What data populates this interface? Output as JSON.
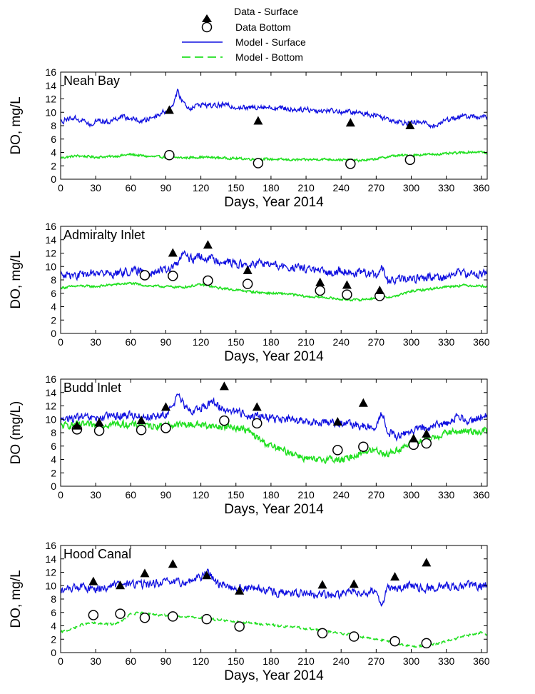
{
  "legend": {
    "data_surface": "Data - Surface",
    "data_bottom": "Data Bottom",
    "model_surface": "Model - Surface",
    "model_bottom": "Model - Bottom"
  },
  "colors": {
    "model_surface": "#1010e0",
    "model_bottom": "#22e022",
    "markers": "#000000"
  },
  "chart_data": [
    {
      "type": "line",
      "title": "Neah Bay",
      "xlabel": "Days, Year 2014",
      "ylabel": "DO, mg/L",
      "xlim": [
        0,
        365
      ],
      "ylim": [
        0,
        16
      ],
      "x_ticks": [
        "0",
        "30",
        "60",
        "90",
        "120",
        "150",
        "180",
        "210",
        "240",
        "270",
        "300",
        "330",
        "360"
      ],
      "y_ticks": [
        "0",
        "2",
        "4",
        "6",
        "8",
        "10",
        "12",
        "14",
        "16"
      ],
      "model_surface": {
        "name": "Model - Surface",
        "x": [
          0,
          10,
          20,
          28,
          30,
          40,
          50,
          60,
          70,
          80,
          85,
          90,
          95,
          100,
          105,
          110,
          120,
          130,
          140,
          150,
          160,
          170,
          180,
          190,
          200,
          210,
          220,
          230,
          240,
          250,
          260,
          270,
          280,
          290,
          300,
          310,
          320,
          330,
          340,
          350,
          360,
          365
        ],
        "y": [
          8.6,
          9.2,
          8.7,
          7.8,
          8.9,
          8.5,
          9.3,
          9.1,
          8.6,
          9.4,
          9.8,
          10.2,
          10.8,
          13.0,
          11.5,
          10.6,
          11.2,
          11.0,
          11.1,
          10.8,
          10.6,
          10.9,
          10.7,
          10.6,
          10.4,
          10.5,
          10.2,
          10.3,
          10.1,
          10.0,
          9.8,
          9.6,
          9.0,
          8.6,
          8.4,
          8.5,
          7.9,
          8.9,
          9.3,
          9.4,
          9.3,
          9.2
        ]
      },
      "model_bottom": {
        "name": "Model - Bottom",
        "x": [
          0,
          15,
          30,
          45,
          60,
          75,
          90,
          105,
          120,
          135,
          150,
          165,
          180,
          195,
          210,
          225,
          240,
          255,
          265,
          275,
          285,
          300,
          315,
          330,
          345,
          360,
          365
        ],
        "y": [
          3.2,
          3.5,
          3.3,
          3.4,
          3.7,
          3.4,
          3.3,
          3.2,
          3.3,
          3.2,
          3.1,
          3.0,
          3.0,
          2.9,
          2.9,
          3.0,
          2.9,
          2.8,
          2.9,
          3.2,
          3.5,
          3.6,
          3.7,
          3.8,
          4.0,
          4.1,
          3.8
        ]
      },
      "data_surface": {
        "name": "Data - Surface",
        "x": [
          93,
          169,
          248,
          299
        ],
        "y": [
          10.3,
          8.7,
          8.4,
          8.0
        ]
      },
      "data_bottom": {
        "name": "Data Bottom",
        "x": [
          93,
          169,
          248,
          299
        ],
        "y": [
          3.6,
          2.4,
          2.3,
          2.9
        ]
      }
    },
    {
      "type": "line",
      "title": "Admiralty Inlet",
      "xlabel": "Days, Year 2014",
      "ylabel": "DO, mg/L",
      "xlim": [
        0,
        365
      ],
      "ylim": [
        0,
        16
      ],
      "x_ticks": [
        "0",
        "30",
        "60",
        "90",
        "120",
        "150",
        "180",
        "210",
        "240",
        "270",
        "300",
        "330",
        "360"
      ],
      "y_ticks": [
        "0",
        "2",
        "4",
        "6",
        "8",
        "10",
        "12",
        "14",
        "16"
      ],
      "model_surface": {
        "name": "Model - Surface",
        "x": [
          0,
          15,
          30,
          45,
          60,
          75,
          90,
          100,
          105,
          110,
          120,
          130,
          140,
          150,
          160,
          170,
          180,
          190,
          200,
          210,
          220,
          230,
          240,
          250,
          260,
          270,
          275,
          280,
          290,
          300,
          310,
          320,
          330,
          340,
          350,
          360,
          365
        ],
        "y": [
          8.8,
          8.6,
          9.1,
          8.9,
          9.3,
          9.2,
          9.4,
          10.3,
          12.2,
          11.0,
          11.5,
          11.1,
          10.8,
          10.4,
          10.1,
          10.5,
          10.3,
          9.9,
          9.8,
          9.7,
          9.3,
          9.0,
          9.6,
          8.9,
          9.1,
          8.6,
          9.8,
          7.8,
          8.0,
          8.2,
          8.3,
          8.5,
          8.4,
          9.2,
          8.8,
          8.9,
          9.2
        ]
      },
      "model_bottom": {
        "name": "Model - Bottom",
        "x": [
          0,
          15,
          30,
          45,
          60,
          75,
          90,
          105,
          120,
          135,
          150,
          165,
          180,
          195,
          210,
          225,
          240,
          255,
          270,
          285,
          300,
          315,
          330,
          345,
          360,
          365
        ],
        "y": [
          6.8,
          7.1,
          7.0,
          7.3,
          7.5,
          7.1,
          7.0,
          6.9,
          7.3,
          6.8,
          6.5,
          6.2,
          6.0,
          5.9,
          5.5,
          5.4,
          5.1,
          5.0,
          5.3,
          5.5,
          6.3,
          6.6,
          7.0,
          7.2,
          7.1,
          7.0
        ]
      },
      "data_surface": {
        "name": "Data - Surface",
        "x": [
          96,
          126,
          160,
          222,
          245,
          273
        ],
        "y": [
          12.0,
          13.2,
          9.4,
          7.6,
          7.2,
          6.4
        ]
      },
      "data_bottom": {
        "name": "Data Bottom",
        "x": [
          72,
          96,
          126,
          160,
          222,
          245,
          273
        ],
        "y": [
          8.7,
          8.6,
          7.9,
          7.4,
          6.4,
          5.8,
          5.6
        ]
      }
    },
    {
      "type": "line",
      "title": "Budd Inlet",
      "xlabel": "Days, Year 2014",
      "ylabel": "DO (mg/L)",
      "xlim": [
        0,
        365
      ],
      "ylim": [
        0,
        16
      ],
      "x_ticks": [
        "0",
        "30",
        "60",
        "90",
        "120",
        "150",
        "180",
        "210",
        "240",
        "270",
        "300",
        "330",
        "360"
      ],
      "y_ticks": [
        "0",
        "2",
        "4",
        "6",
        "8",
        "10",
        "12",
        "14",
        "16"
      ],
      "model_surface": {
        "name": "Model - Surface",
        "x": [
          0,
          15,
          30,
          45,
          60,
          75,
          90,
          100,
          110,
          120,
          130,
          140,
          150,
          160,
          170,
          180,
          190,
          200,
          210,
          220,
          230,
          240,
          250,
          260,
          270,
          275,
          280,
          290,
          300,
          310,
          320,
          330,
          340,
          350,
          360,
          365
        ],
        "y": [
          9.8,
          10.3,
          10.1,
          10.5,
          10.6,
          10.4,
          10.5,
          13.5,
          11.0,
          11.8,
          12.5,
          11.5,
          11.2,
          10.6,
          10.5,
          10.2,
          10.0,
          9.8,
          9.6,
          9.5,
          9.7,
          9.3,
          9.2,
          9.0,
          8.4,
          11.2,
          8.0,
          7.4,
          8.3,
          8.6,
          9.0,
          9.4,
          10.5,
          9.8,
          10.3,
          10.8
        ]
      },
      "model_bottom": {
        "name": "Model - Bottom",
        "x": [
          0,
          15,
          30,
          45,
          60,
          75,
          90,
          105,
          120,
          135,
          150,
          160,
          170,
          180,
          190,
          200,
          210,
          220,
          230,
          240,
          250,
          260,
          270,
          280,
          290,
          300,
          315,
          330,
          345,
          360,
          365
        ],
        "y": [
          9.0,
          9.2,
          9.1,
          9.3,
          9.2,
          9.0,
          9.1,
          9.2,
          9.2,
          8.9,
          8.8,
          8.3,
          7.0,
          6.0,
          5.3,
          4.9,
          4.1,
          3.8,
          4.2,
          3.8,
          4.5,
          5.2,
          5.4,
          4.8,
          5.6,
          6.3,
          7.0,
          8.0,
          8.2,
          8.2,
          8.3
        ]
      },
      "data_surface": {
        "name": "Data - Surface",
        "x": [
          14,
          33,
          69,
          90,
          140,
          168,
          237,
          259,
          302,
          313
        ],
        "y": [
          9.0,
          9.5,
          9.8,
          11.8,
          14.9,
          11.8,
          9.6,
          12.4,
          7.1,
          7.8
        ]
      },
      "data_bottom": {
        "name": "Data Bottom",
        "x": [
          14,
          33,
          69,
          90,
          140,
          168,
          237,
          259,
          302,
          313
        ],
        "y": [
          8.5,
          8.3,
          8.4,
          8.7,
          9.8,
          9.4,
          5.4,
          5.9,
          6.2,
          6.4
        ]
      }
    },
    {
      "type": "line",
      "title": "Hood Canal",
      "xlabel": "Days, Year 2014",
      "ylabel": "DO, mg/L",
      "xlim": [
        0,
        365
      ],
      "ylim": [
        0,
        16
      ],
      "x_ticks": [
        "0",
        "30",
        "60",
        "90",
        "120",
        "150",
        "180",
        "210",
        "240",
        "270",
        "300",
        "330",
        "360"
      ],
      "y_ticks": [
        "0",
        "2",
        "4",
        "6",
        "8",
        "10",
        "12",
        "14",
        "16"
      ],
      "model_surface": {
        "name": "Model - Surface",
        "x": [
          0,
          15,
          30,
          45,
          60,
          75,
          90,
          105,
          120,
          125,
          135,
          150,
          165,
          180,
          195,
          210,
          225,
          240,
          250,
          260,
          270,
          275,
          280,
          290,
          300,
          310,
          320,
          330,
          340,
          350,
          360,
          365
        ],
        "y": [
          9.2,
          9.8,
          9.5,
          10.0,
          10.3,
          10.2,
          10.5,
          10.4,
          11.2,
          12.2,
          10.3,
          9.7,
          9.6,
          9.1,
          8.8,
          8.7,
          8.6,
          8.7,
          9.3,
          9.0,
          9.2,
          7.2,
          9.7,
          9.6,
          10.0,
          9.4,
          9.8,
          10.0,
          9.6,
          10.1,
          10.0,
          10.2
        ]
      },
      "model_bottom": {
        "name": "Model - Bottom",
        "x": [
          0,
          10,
          20,
          30,
          45,
          55,
          60,
          70,
          80,
          95,
          110,
          125,
          140,
          155,
          170,
          185,
          200,
          215,
          230,
          245,
          260,
          275,
          290,
          300,
          310,
          320,
          330,
          345,
          360,
          365
        ],
        "y": [
          3.0,
          3.6,
          4.3,
          4.4,
          4.2,
          5.0,
          5.8,
          5.9,
          5.7,
          5.5,
          5.4,
          5.1,
          4.8,
          4.5,
          4.3,
          4.0,
          3.8,
          3.5,
          3.1,
          2.8,
          2.3,
          1.9,
          1.3,
          0.9,
          1.0,
          1.2,
          1.7,
          2.4,
          3.0,
          2.7
        ]
      },
      "data_surface": {
        "name": "Data - Surface",
        "x": [
          28,
          51,
          72,
          96,
          125,
          153,
          224,
          251,
          286,
          313
        ],
        "y": [
          10.6,
          10.0,
          11.8,
          13.2,
          11.5,
          9.2,
          10.1,
          10.2,
          11.3,
          13.4
        ]
      },
      "data_bottom": {
        "name": "Data Bottom",
        "x": [
          28,
          51,
          72,
          96,
          125,
          153,
          224,
          251,
          286,
          313
        ],
        "y": [
          5.6,
          5.8,
          5.2,
          5.4,
          5.0,
          3.9,
          2.9,
          2.4,
          1.7,
          1.4
        ]
      }
    }
  ]
}
